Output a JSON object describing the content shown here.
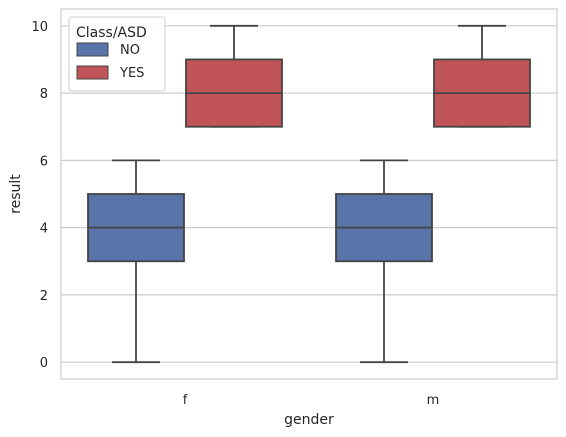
{
  "chart_data": {
    "type": "box",
    "xlabel": "gender",
    "ylabel": "result",
    "categories": [
      "f",
      "m"
    ],
    "ylim": [
      -0.5,
      10.5
    ],
    "yticks": [
      0,
      2,
      4,
      6,
      8,
      10
    ],
    "grid": "horizontal",
    "legend": {
      "title": "Class/ASD",
      "placement": "top-left",
      "entries": [
        "NO",
        "YES"
      ]
    },
    "series": [
      {
        "name": "NO",
        "color": "#5874a8",
        "boxes": [
          {
            "category": "f",
            "min": 0,
            "q1": 3,
            "median": 4,
            "q3": 5,
            "max": 6
          },
          {
            "category": "m",
            "min": 0,
            "q1": 3,
            "median": 4,
            "q3": 5,
            "max": 6
          }
        ]
      },
      {
        "name": "YES",
        "color": "#c05458",
        "boxes": [
          {
            "category": "f",
            "min": 7,
            "q1": 7,
            "median": 8,
            "q3": 9,
            "max": 10
          },
          {
            "category": "m",
            "min": 7,
            "q1": 7,
            "median": 8,
            "q3": 9,
            "max": 10
          }
        ]
      }
    ]
  }
}
